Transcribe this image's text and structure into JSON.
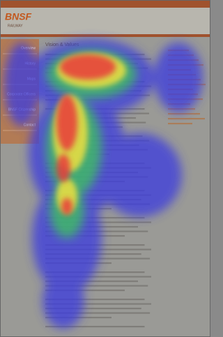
{
  "header": {
    "logo": "BNSF",
    "logo_sub": "RAILWAY"
  },
  "nav": {
    "items": [
      "Overview",
      "History",
      "Maps",
      "Corporate Officers",
      "BNSF Citizenship",
      "Contact"
    ]
  },
  "main": {
    "title": "Vision & Values"
  }
}
